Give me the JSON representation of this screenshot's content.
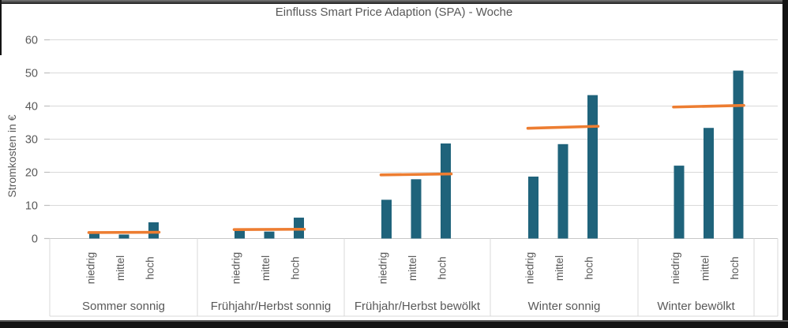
{
  "chart_data": {
    "type": "bar",
    "title": "Einfluss Smart Price Adaption (SPA) - Woche",
    "xlabel": "",
    "ylabel": "Stromkosten in €",
    "ylim": [
      0,
      60
    ],
    "yticks": [
      0,
      10,
      20,
      30,
      40,
      50,
      60
    ],
    "grid": true,
    "legend_position": "none",
    "bar_color": "#1F637B",
    "line_color": "#ED7D31",
    "text_color": "#595959",
    "gridline_color": "#D9D9D9",
    "sub_categories": [
      "niedrig",
      "mittel",
      "hoch"
    ],
    "groups": [
      {
        "label": "Sommer sonnig",
        "values": [
          1.5,
          1.2,
          4.9
        ],
        "line": [
          1.8,
          1.9
        ]
      },
      {
        "label": "Frühjahr/Herbst sonnig",
        "values": [
          2.5,
          2.1,
          6.3
        ],
        "line": [
          2.7,
          2.8
        ]
      },
      {
        "label": "Frühjahr/Herbst bewölkt",
        "values": [
          11.7,
          17.9,
          28.7
        ],
        "line": [
          19.2,
          19.5
        ]
      },
      {
        "label": "Winter sonnig",
        "values": [
          18.7,
          28.5,
          43.3
        ],
        "line": [
          33.3,
          33.9
        ]
      },
      {
        "label": "Winter bewölkt",
        "values": [
          22.0,
          33.4,
          50.7
        ],
        "line": [
          39.7,
          40.2
        ]
      }
    ]
  }
}
